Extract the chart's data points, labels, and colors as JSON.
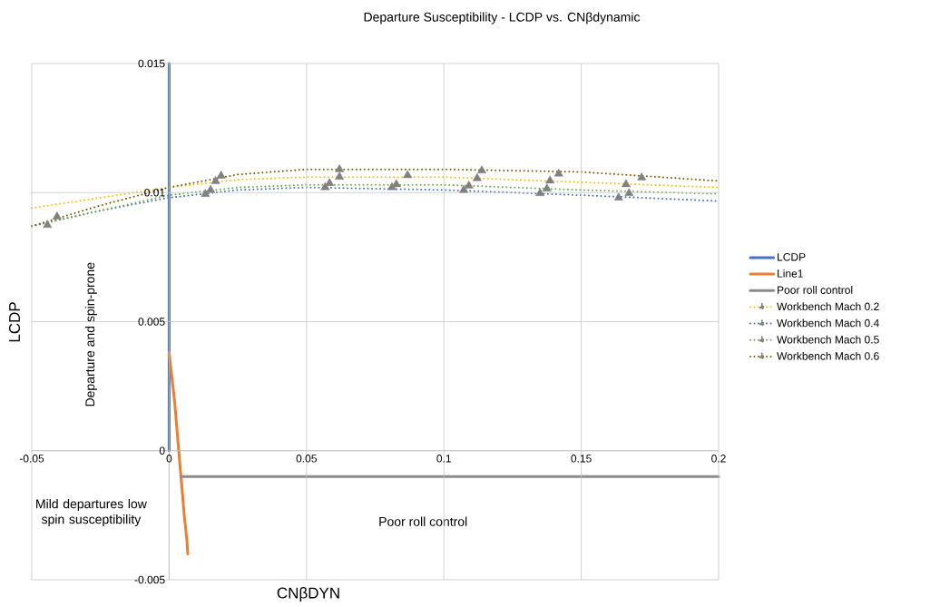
{
  "chart_data": {
    "type": "line",
    "title": "Departure Susceptibility - LCDP vs. CNβdynamic",
    "xlabel": "CNβDYN",
    "ylabel": "LCDP",
    "xlim": [
      -0.05,
      0.2
    ],
    "ylim": [
      -0.005,
      0.015
    ],
    "xticks": [
      -0.05,
      0,
      0.05,
      0.1,
      0.15,
      0.2
    ],
    "yticks": [
      -0.005,
      0,
      0.005,
      0.01,
      0.015
    ],
    "grid": true,
    "legend": "right",
    "annotations": [
      "Departure and spin-prone",
      "Mild departures low spin susceptibility",
      "Poor roll control"
    ],
    "series": [
      {
        "name": "LCDP",
        "line_style": "solid",
        "color": "#4472c4",
        "x": [
          0,
          0
        ],
        "values": [
          0,
          0.015
        ]
      },
      {
        "name": "Line1",
        "line_style": "solid",
        "color": "#ed7d31",
        "x": [
          0,
          0.002,
          0.0035,
          0.0055,
          0.0065,
          0.0068
        ],
        "values": [
          0.0038,
          0.0019,
          0,
          -0.0025,
          -0.0035,
          -0.004
        ]
      },
      {
        "name": "Poor roll control",
        "line_style": "solid",
        "color": "#8c8c8c",
        "x": [
          0.0043,
          0.2
        ],
        "values": [
          -0.001,
          -0.001
        ]
      },
      {
        "name": "Workbench Mach 0.2",
        "line_style": "dotted",
        "color": "#ffc000",
        "x": [
          -0.05,
          -0.025,
          0,
          0.025,
          0.05,
          0.1,
          0.15,
          0.2
        ],
        "values": [
          0.0094,
          0.0098,
          0.0102,
          0.0105,
          0.0106,
          0.0106,
          0.0104,
          0.0102
        ]
      },
      {
        "name": "Workbench Mach 0.4",
        "line_style": "dotted",
        "color": "#4472c4",
        "x": [
          -0.05,
          -0.025,
          0,
          0.025,
          0.05,
          0.1,
          0.15,
          0.2
        ],
        "values": [
          0.0087,
          0.0093,
          0.0098,
          0.0101,
          0.0102,
          0.0101,
          0.0099,
          0.00967
        ]
      },
      {
        "name": "Workbench Mach 0.5",
        "line_style": "dotted",
        "color": "#70ad47",
        "x": [
          -0.05,
          -0.025,
          0,
          0.025,
          0.05,
          0.1,
          0.15,
          0.2
        ],
        "values": [
          0.0087,
          0.0093,
          0.0099,
          0.0102,
          0.0103,
          0.0103,
          0.0101,
          0.00995
        ]
      },
      {
        "name": "Workbench Mach 0.6",
        "line_style": "dotted",
        "color": "#7f6000",
        "x": [
          -0.05,
          -0.025,
          0,
          0.025,
          0.05,
          0.1,
          0.15,
          0.2
        ],
        "values": [
          0.0087,
          0.0095,
          0.0102,
          0.0107,
          0.0109,
          0.0109,
          0.0108,
          0.01045
        ]
      },
      {
        "type": "scatter",
        "marker": "triangle",
        "color": "#808080",
        "x": [
          -0.0443,
          0.0132,
          0.0568,
          0.0811,
          0.1072,
          0.135,
          0.1636
        ],
        "values": [
          0.00874,
          0.00994,
          0.0102,
          0.0102,
          0.0101,
          0.00997,
          0.0098
        ]
      },
      {
        "type": "scatter",
        "marker": "triangle",
        "color": "#808080",
        "x": [
          0.0151,
          0.0584,
          0.0827,
          0.1091,
          0.1375,
          0.1674
        ],
        "values": [
          0.0101,
          0.01036,
          0.01032,
          0.01026,
          0.01015,
          0.00997
        ]
      },
      {
        "type": "scatter",
        "marker": "triangle",
        "color": "#808080",
        "x": [
          0.0169,
          0.062,
          0.0868,
          0.1121,
          0.1386,
          0.1663
        ],
        "values": [
          0.01044,
          0.01061,
          0.01067,
          0.01055,
          0.01046,
          0.01032
        ]
      },
      {
        "type": "scatter",
        "marker": "triangle",
        "color": "#808080",
        "x": [
          -0.0408,
          0.0189,
          0.062,
          0.1138,
          0.1418,
          0.172
        ],
        "values": [
          0.00907,
          0.01065,
          0.0109,
          0.01085,
          0.01073,
          0.01058
        ]
      }
    ]
  }
}
